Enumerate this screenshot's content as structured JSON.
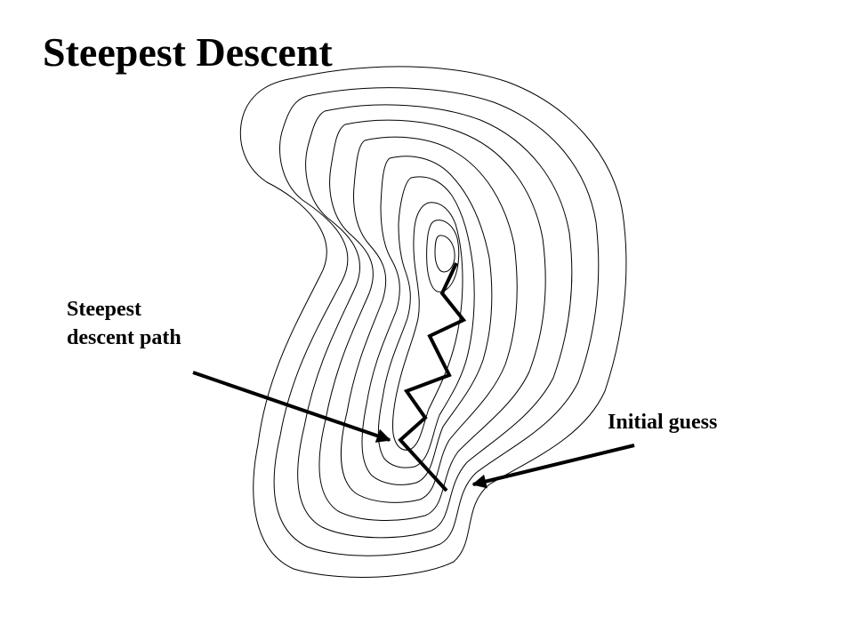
{
  "title": "Steepest Descent",
  "labels": {
    "path_line1": "Steepest",
    "path_line2": "descent path",
    "initial_guess": "Initial guess"
  },
  "colors": {
    "ink": "#000000",
    "background": "#ffffff"
  }
}
